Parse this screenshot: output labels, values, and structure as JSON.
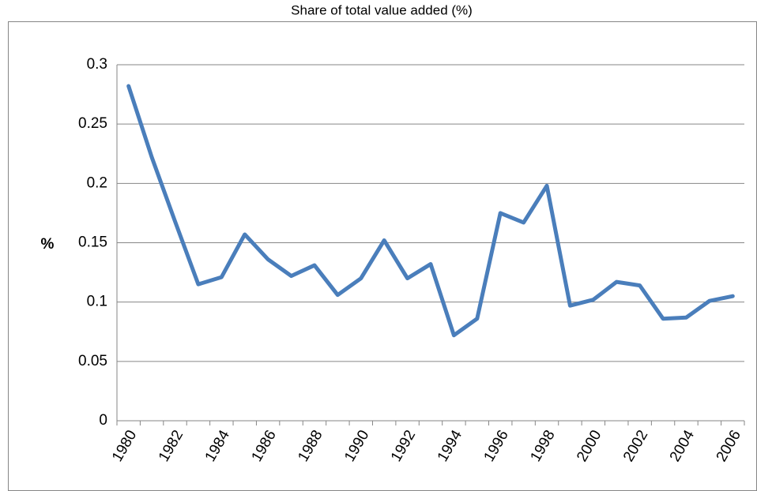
{
  "chart_data": {
    "type": "line",
    "title": "Share of total value added (%)",
    "y_label": "%",
    "categories": [
      "1980",
      null,
      "1982",
      null,
      "1984",
      null,
      "1986",
      null,
      "1988",
      null,
      "1990",
      null,
      "1992",
      null,
      "1994",
      null,
      "1996",
      null,
      "1998",
      null,
      "2000",
      null,
      "2002",
      null,
      "2004",
      null,
      "2006"
    ],
    "values": [
      0.282,
      0.222,
      0.168,
      0.115,
      0.121,
      0.157,
      0.136,
      0.122,
      0.131,
      0.106,
      0.12,
      0.152,
      0.12,
      0.132,
      0.072,
      0.086,
      0.175,
      0.167,
      0.198,
      0.097,
      0.102,
      0.117,
      0.114,
      0.086,
      0.087,
      0.101,
      0.105
    ],
    "color": "#4a7ebb",
    "ylim": [
      0,
      0.3
    ],
    "yticks": [
      0,
      0.05,
      0.1,
      0.15,
      0.2,
      0.25,
      0.3
    ],
    "grid": true
  }
}
